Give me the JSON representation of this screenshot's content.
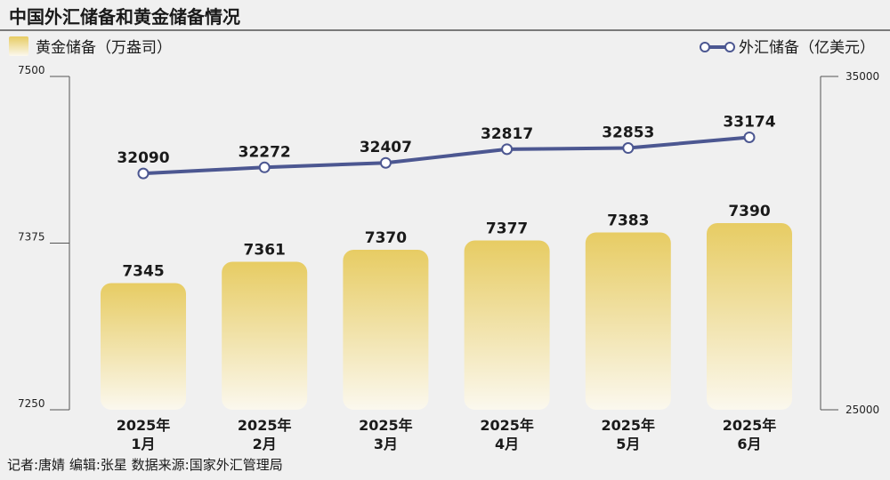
{
  "title": "中国外汇储备和黄金储备情况",
  "footer": "记者:唐婧  编辑:张星  数据来源:国家外汇管理局",
  "colors": {
    "bar_top": "#e7cc63",
    "bar_bottom": "#fbf8ee",
    "line": "#4c5791",
    "axis": "#555555",
    "title_rule": "#333333"
  },
  "chart_data": {
    "type": "bar+line",
    "categories": [
      [
        "2025年",
        "1月"
      ],
      [
        "2025年",
        "2月"
      ],
      [
        "2025年",
        "3月"
      ],
      [
        "2025年",
        "4月"
      ],
      [
        "2025年",
        "5月"
      ],
      [
        "2025年",
        "6月"
      ]
    ],
    "bar_series": {
      "name": "黄金储备（万盎司）",
      "values": [
        7345,
        7361,
        7370,
        7377,
        7383,
        7390
      ],
      "axis": "left",
      "ylim": [
        7250,
        7500
      ],
      "ticks": [
        7250,
        7375,
        7500
      ]
    },
    "line_series": {
      "name": "外汇储备（亿美元）",
      "values": [
        32090,
        32272,
        32407,
        32817,
        32853,
        33174
      ],
      "axis": "right",
      "ylim": [
        25000,
        35000
      ],
      "ticks": [
        25000,
        35000
      ]
    },
    "legend_left": "黄金储备（万盎司）",
    "legend_right": "外汇储备（亿美元）",
    "grid": false
  }
}
